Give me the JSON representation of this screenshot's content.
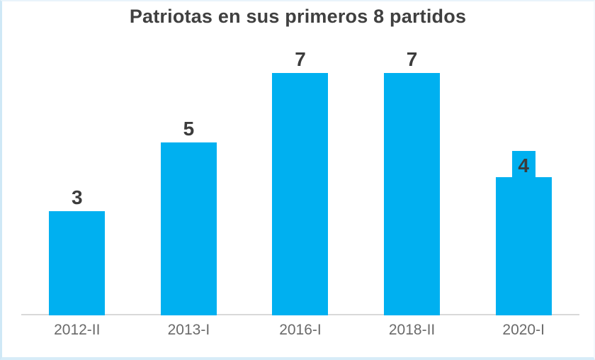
{
  "chart_data": {
    "type": "bar",
    "title": "Patriotas en sus primeros 8 partidos",
    "categories": [
      "2012-II",
      "2013-I",
      "2016-I",
      "2018-II",
      "2020-I"
    ],
    "values": [
      3,
      5,
      7,
      7,
      4
    ],
    "xlabel": "",
    "ylabel": "",
    "ylim": [
      0,
      7
    ],
    "grid": false,
    "legend": false,
    "data_labels_shown": true,
    "label_style_overrides": {
      "2020-I": "boxed"
    },
    "colors": {
      "bar": "#00b0f0",
      "title": "#404040",
      "value_label": "#3c3c3c",
      "boxed_value_label_bg": "#00b0f0",
      "axis_tick_label": "#6a6a6a",
      "axis_line": "#d9d9d9",
      "frame_border": "#cfe8f6"
    }
  }
}
